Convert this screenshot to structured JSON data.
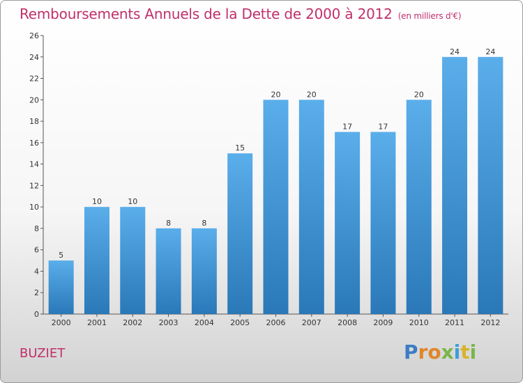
{
  "chart_data": {
    "type": "bar",
    "title": "Remboursements Annuels de la Dette de 2000 à 2012",
    "unit_label": "(en milliers d'€)",
    "categories": [
      "2000",
      "2001",
      "2002",
      "2003",
      "2004",
      "2005",
      "2006",
      "2007",
      "2008",
      "2009",
      "2010",
      "2011",
      "2012"
    ],
    "values": [
      5,
      10,
      10,
      8,
      8,
      15,
      20,
      20,
      17,
      17,
      20,
      24,
      24
    ],
    "ylim": [
      0,
      26
    ],
    "yticks": [
      0,
      2,
      4,
      6,
      8,
      10,
      12,
      14,
      16,
      18,
      20,
      22,
      24,
      26
    ],
    "grid": false,
    "bar_color": "#4a9ad8"
  },
  "footer": {
    "commune": "BUZIET",
    "logo_text": "Proxiti"
  }
}
